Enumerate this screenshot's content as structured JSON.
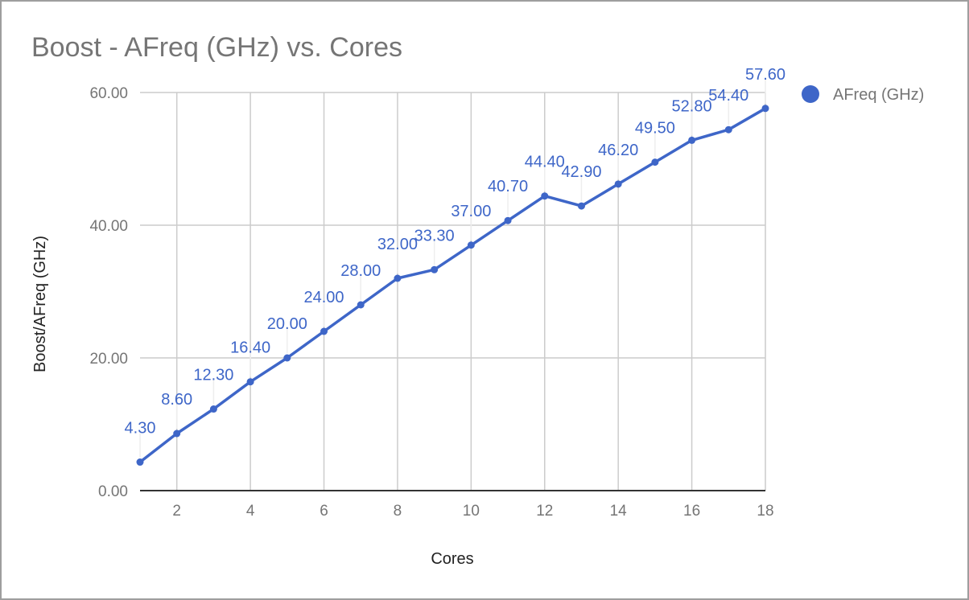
{
  "chart_data": {
    "type": "line",
    "title": "Boost - AFreq (GHz) vs. Cores",
    "xlabel": "Cores",
    "ylabel": "Boost/AFreq (GHz)",
    "x": [
      1,
      2,
      3,
      4,
      5,
      6,
      7,
      8,
      9,
      10,
      11,
      12,
      13,
      14,
      15,
      16,
      17,
      18
    ],
    "series": [
      {
        "name": "AFreq (GHz)",
        "color": "#3e66c8",
        "values": [
          4.3,
          8.6,
          12.3,
          16.4,
          20.0,
          24.0,
          28.0,
          32.0,
          33.3,
          37.0,
          40.7,
          44.4,
          42.9,
          46.2,
          49.5,
          52.8,
          54.4,
          57.6
        ],
        "labels": [
          "4.30",
          "8.60",
          "12.30",
          "16.40",
          "20.00",
          "24.00",
          "28.00",
          "32.00",
          "33.30",
          "37.00",
          "40.70",
          "44.40",
          "42.90",
          "46.20",
          "49.50",
          "52.80",
          "54.40",
          "57.60"
        ]
      }
    ],
    "xlim": [
      1,
      18
    ],
    "ylim": [
      0,
      60
    ],
    "xticks": [
      2,
      4,
      6,
      8,
      10,
      12,
      14,
      16,
      18
    ],
    "xtick_labels": [
      "2",
      "4",
      "6",
      "8",
      "10",
      "12",
      "14",
      "16",
      "18"
    ],
    "yticks": [
      0,
      20,
      40,
      60
    ],
    "ytick_labels": [
      "0.00",
      "20.00",
      "40.00",
      "60.00"
    ],
    "grid": true,
    "legend": {
      "position": "right",
      "entries": [
        "AFreq (GHz)"
      ]
    }
  }
}
